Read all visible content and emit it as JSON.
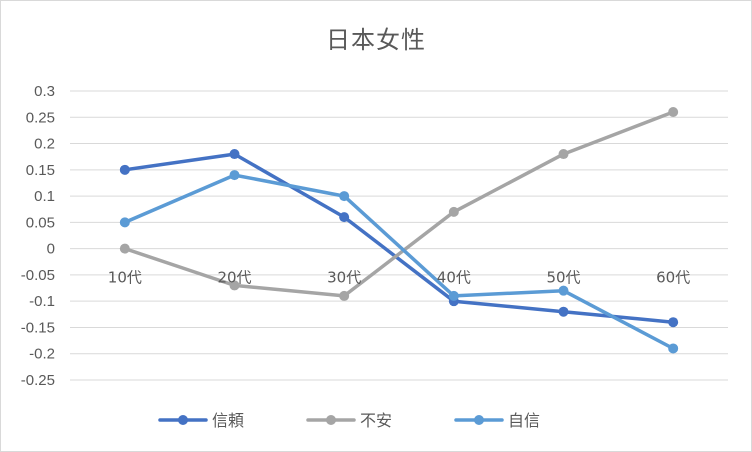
{
  "chart_data": {
    "type": "line",
    "title": "日本女性",
    "categories": [
      "10代",
      "20代",
      "30代",
      "40代",
      "50代",
      "60代"
    ],
    "y_ticks": [
      "0.3",
      "0.25",
      "0.2",
      "0.15",
      "0.1",
      "0.05",
      "0",
      "-0.05",
      "-0.1",
      "-0.15",
      "-0.2",
      "-0.25"
    ],
    "ylim": [
      -0.25,
      0.3
    ],
    "grid": true,
    "legend_position": "bottom",
    "series": [
      {
        "name": "信頼",
        "color": "#4472c4",
        "values": [
          0.15,
          0.18,
          0.06,
          -0.1,
          -0.12,
          -0.14
        ]
      },
      {
        "name": "不安",
        "color": "#a5a5a5",
        "values": [
          0.0,
          -0.07,
          -0.09,
          0.07,
          0.18,
          0.26
        ]
      },
      {
        "name": "自信",
        "color": "#5b9bd5",
        "values": [
          0.05,
          0.14,
          0.1,
          -0.09,
          -0.08,
          -0.19
        ]
      }
    ]
  }
}
